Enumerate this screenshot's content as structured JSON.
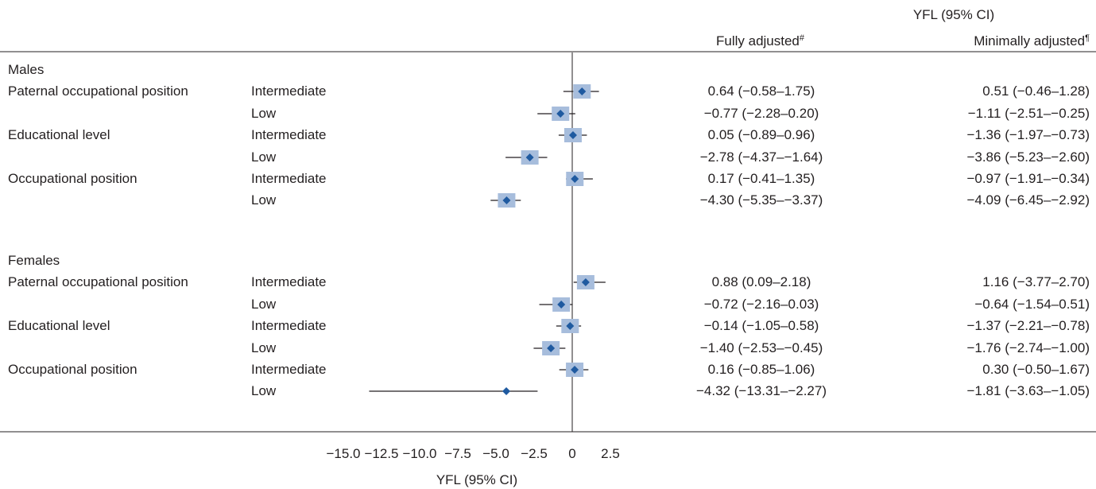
{
  "header": {
    "group_title": "YFL (95% CI)",
    "col1": "Fully adjusted",
    "col1_mark": "#",
    "col2": "Minimally adjusted",
    "col2_mark": "¶"
  },
  "chart_data": {
    "type": "forest",
    "xlabel": "YFL (95% CI)",
    "ticks": [
      "-15.0",
      "-12.5",
      "-10.0",
      "-7.5",
      "-5.0",
      "-2.5",
      "0",
      "2.5"
    ],
    "xlim": [
      -15.0,
      2.5
    ],
    "colors": {
      "marker": "#1f5aa0",
      "box": "#a7bddc",
      "line": "#231f20"
    },
    "groups": [
      {
        "label": "Males",
        "rows": [
          {
            "variable": "Paternal occupational position",
            "level": "Intermediate",
            "est": 0.64,
            "lo": -0.58,
            "hi": 1.75,
            "fully": "0.64 (−0.58–1.75)",
            "minimal": "0.51 (−0.46–1.28)"
          },
          {
            "variable": "",
            "level": "Low",
            "est": -0.77,
            "lo": -2.28,
            "hi": 0.2,
            "fully": "−0.77 (−2.28–0.20)",
            "minimal": "−1.11 (−2.51–−0.25)"
          },
          {
            "variable": "Educational level",
            "level": "Intermediate",
            "est": 0.05,
            "lo": -0.89,
            "hi": 0.96,
            "fully": "0.05 (−0.89–0.96)",
            "minimal": "−1.36 (−1.97–−0.73)"
          },
          {
            "variable": "",
            "level": "Low",
            "est": -2.78,
            "lo": -4.37,
            "hi": -1.64,
            "fully": "−2.78 (−4.37–−1.64)",
            "minimal": "−3.86 (−5.23–−2.60)"
          },
          {
            "variable": "Occupational position",
            "level": "Intermediate",
            "est": 0.17,
            "lo": -0.41,
            "hi": 1.35,
            "fully": "0.17 (−0.41–1.35)",
            "minimal": "−0.97 (−1.91–−0.34)"
          },
          {
            "variable": "",
            "level": "Low",
            "est": -4.3,
            "lo": -5.35,
            "hi": -3.37,
            "fully": "−4.30 (−5.35–−3.37)",
            "minimal": "−4.09 (−6.45–−2.92)"
          }
        ]
      },
      {
        "label": "Females",
        "rows": [
          {
            "variable": "Paternal occupational position",
            "level": "Intermediate",
            "est": 0.88,
            "lo": 0.09,
            "hi": 2.18,
            "fully": "0.88 (0.09–2.18)",
            "minimal": "1.16 (−3.77–2.70)"
          },
          {
            "variable": "",
            "level": "Low",
            "est": -0.72,
            "lo": -2.16,
            "hi": 0.03,
            "fully": "−0.72 (−2.16–0.03)",
            "minimal": "−0.64 (−1.54–0.51)"
          },
          {
            "variable": "Educational level",
            "level": "Intermediate",
            "est": -0.14,
            "lo": -1.05,
            "hi": 0.58,
            "fully": "−0.14 (−1.05–0.58)",
            "minimal": "−1.37 (−2.21–−0.78)"
          },
          {
            "variable": "",
            "level": "Low",
            "est": -1.4,
            "lo": -2.53,
            "hi": -0.45,
            "fully": "−1.40 (−2.53–−0.45)",
            "minimal": "−1.76 (−2.74–−1.00)"
          },
          {
            "variable": "Occupational position",
            "level": "Intermediate",
            "est": 0.16,
            "lo": -0.85,
            "hi": 1.06,
            "fully": "0.16 (−0.85–1.06)",
            "minimal": "0.30 (−0.50–1.67)"
          },
          {
            "variable": "",
            "level": "Low",
            "est": -4.32,
            "lo": -13.31,
            "hi": -2.27,
            "fully": "−4.32 (−13.31–−2.27)",
            "minimal": "−1.81 (−3.63–−1.05)"
          }
        ]
      }
    ]
  }
}
